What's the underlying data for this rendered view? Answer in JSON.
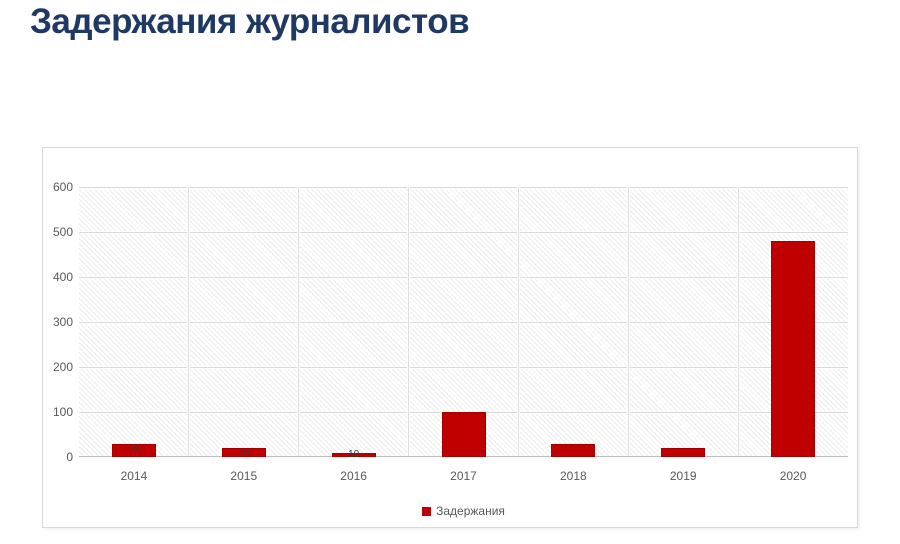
{
  "page": {
    "title": "Задержания журналистов"
  },
  "chart_data": {
    "type": "bar",
    "title": "Задержания журналистов",
    "categories": [
      "2014",
      "2015",
      "2016",
      "2017",
      "2018",
      "2019",
      "2020"
    ],
    "series": [
      {
        "name": "Задержания",
        "values": [
          29,
          19,
          10,
          100,
          30,
          20,
          480
        ]
      }
    ],
    "bar_labels": [
      "29",
      "19",
      "10",
      "",
      "",
      "",
      ""
    ],
    "xlabel": "",
    "ylabel": "",
    "ylim": [
      0,
      600
    ],
    "yticks": [
      0,
      100,
      200,
      300,
      400,
      500,
      600
    ],
    "grid": true,
    "plot_background": "diagonal-hatch",
    "legend": {
      "label": "Задержания",
      "position": "bottom"
    }
  },
  "colors": {
    "title_text": "#1f3864",
    "bar_fill": "#c00000",
    "axis_text": "#595959",
    "chart_border": "#d9d9d9",
    "gridline": "#dadada"
  }
}
